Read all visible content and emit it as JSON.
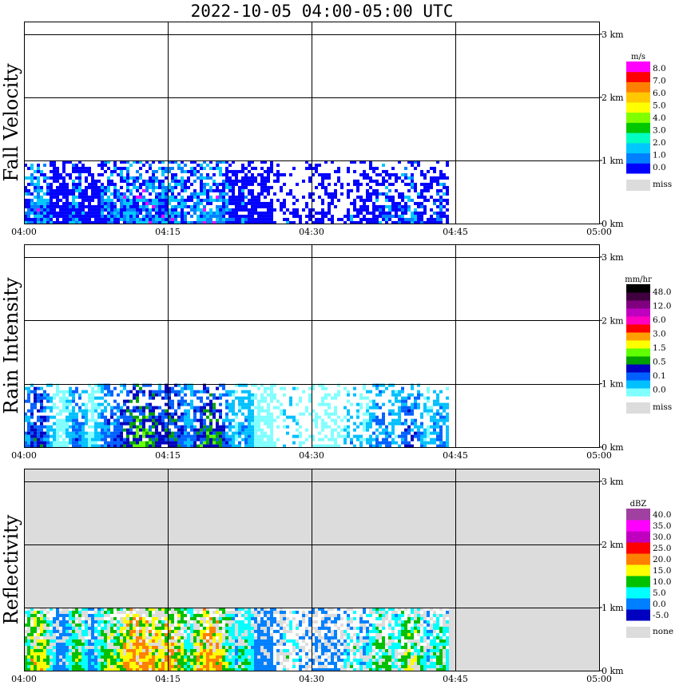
{
  "title": "2022-10-05   04:00-05:00 UTC",
  "chart_data": [
    {
      "type": "heatmap",
      "panel_label": "Fall Velocity",
      "x_ticks": [
        "04:00",
        "04:15",
        "04:30",
        "04:45",
        "05:00"
      ],
      "y_ticks": [
        "0 km",
        "1 km",
        "2 km",
        "3 km"
      ],
      "ylim_km": [
        0,
        3.2
      ],
      "colorbar": {
        "unit": "m/s",
        "colors": [
          "#0000ff",
          "#0080ff",
          "#00c8ff",
          "#00ffc0",
          "#00c800",
          "#80ff00",
          "#ffff00",
          "#ffc800",
          "#ff8000",
          "#ff0000",
          "#ff00ff"
        ],
        "labels": [
          "0.0",
          "1.0",
          "2.0",
          "3.0",
          "4.0",
          "5.0",
          "6.0",
          "7.0",
          "8.0"
        ],
        "missing_label": "miss",
        "missing_color": "#dcdcdc"
      },
      "background": "#ffffff",
      "echo_top_km": 1.0
    },
    {
      "type": "heatmap",
      "panel_label": "Rain Intensity",
      "x_ticks": [
        "04:00",
        "04:15",
        "04:30",
        "04:45",
        "05:00"
      ],
      "y_ticks": [
        "0 km",
        "1 km",
        "2 km",
        "3 km"
      ],
      "ylim_km": [
        0,
        3.2
      ],
      "colorbar": {
        "unit": "mm/hr",
        "colors": [
          "#80ffff",
          "#00c0ff",
          "#0060ff",
          "#0000c0",
          "#00a000",
          "#60ff00",
          "#ffff00",
          "#ffa000",
          "#ff0000",
          "#ff00c0",
          "#c000c0",
          "#800080",
          "#400040",
          "#000000"
        ],
        "labels": [
          "0.0",
          "0.1",
          "0.5",
          "1.5",
          "3.0",
          "6.0",
          "12.0",
          "48.0"
        ],
        "missing_label": "miss",
        "missing_color": "#dcdcdc"
      },
      "background": "#ffffff",
      "echo_top_km": 1.0
    },
    {
      "type": "heatmap",
      "panel_label": "Reflectivity",
      "x_ticks": [
        "04:00",
        "04:15",
        "04:30",
        "04:45",
        "05:00"
      ],
      "y_ticks": [
        "0 km",
        "1 km",
        "2 km",
        "3 km"
      ],
      "ylim_km": [
        0,
        3.2
      ],
      "colorbar": {
        "unit": "dBZ",
        "colors": [
          "#0000c0",
          "#0080ff",
          "#00ffff",
          "#00c000",
          "#ffff00",
          "#ff8000",
          "#ff0000",
          "#c000c0",
          "#ff00ff",
          "#a040a0"
        ],
        "labels": [
          "-5.0",
          "0.0",
          "5.0",
          "10.0",
          "15.0",
          "20.0",
          "25.0",
          "30.0",
          "35.0",
          "40.0"
        ],
        "missing_label": "none",
        "missing_color": "#dcdcdc"
      },
      "background": "#dcdcdc",
      "echo_top_km": 1.0
    }
  ]
}
